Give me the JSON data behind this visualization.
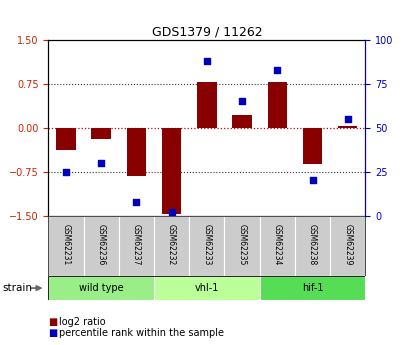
{
  "title": "GDS1379 / 11262",
  "samples": [
    "GSM62231",
    "GSM62236",
    "GSM62237",
    "GSM62232",
    "GSM62233",
    "GSM62235",
    "GSM62234",
    "GSM62238",
    "GSM62239"
  ],
  "log2_ratio": [
    -0.38,
    -0.19,
    -0.82,
    -1.48,
    0.78,
    0.22,
    0.78,
    -0.62,
    0.02
  ],
  "percentile_rank": [
    25,
    30,
    8,
    2,
    88,
    65,
    83,
    20,
    55
  ],
  "groups": [
    {
      "label": "wild type",
      "start": 0,
      "end": 3,
      "color": "#99ee88"
    },
    {
      "label": "vhl-1",
      "start": 3,
      "end": 6,
      "color": "#bbff99"
    },
    {
      "label": "hif-1",
      "start": 6,
      "end": 9,
      "color": "#55dd55"
    }
  ],
  "ylim_left": [
    -1.5,
    1.5
  ],
  "ylim_right": [
    0,
    100
  ],
  "bar_color": "#880000",
  "dot_color": "#0000bb",
  "hline0_color": "#cc0000",
  "hline_color": "#333333",
  "yticks_left": [
    -1.5,
    -0.75,
    0.0,
    0.75,
    1.5
  ],
  "yticks_right": [
    0,
    25,
    50,
    75,
    100
  ],
  "strain_label": "strain",
  "legend_bar": "log2 ratio",
  "legend_dot": "percentile rank within the sample",
  "background_color": "#ffffff",
  "label_bg": "#cccccc"
}
